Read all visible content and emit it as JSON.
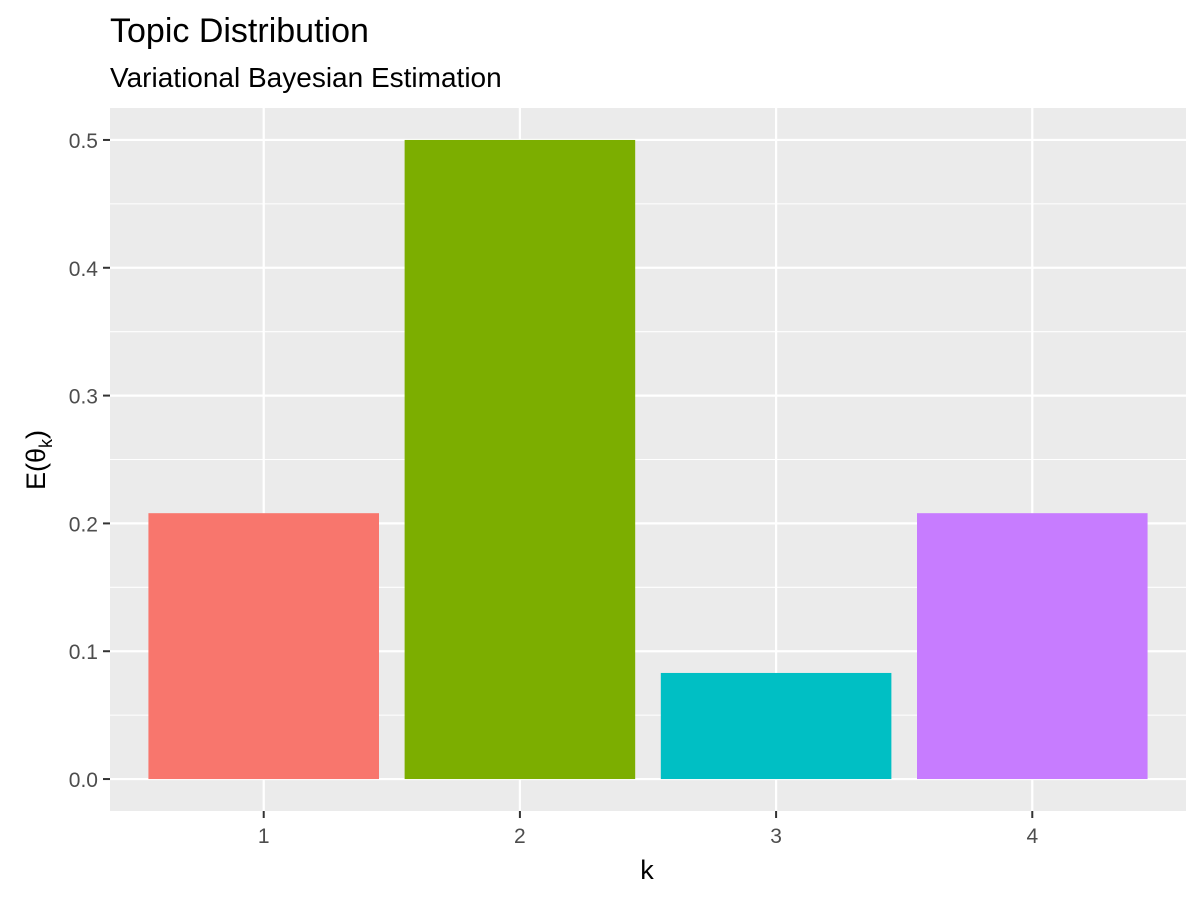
{
  "chart_data": {
    "type": "bar",
    "title": "Topic Distribution",
    "subtitle": "Variational Bayesian Estimation",
    "xlabel": "k",
    "ylabel": {
      "main": "E(θ",
      "sub": "k",
      "close": ")"
    },
    "categories": [
      "1",
      "2",
      "3",
      "4"
    ],
    "values": [
      0.208,
      0.5,
      0.083,
      0.208
    ],
    "colors": [
      "#F8766D",
      "#7CAE00",
      "#00BFC4",
      "#C77CFF"
    ],
    "ylim": [
      -0.025,
      0.525
    ],
    "y_ticks": [
      0.0,
      0.1,
      0.2,
      0.3,
      0.4,
      0.5
    ],
    "y_tick_labels": [
      "0.0",
      "0.1",
      "0.2",
      "0.3",
      "0.4",
      "0.5"
    ],
    "grid": true,
    "panel_background": "#EBEBEB",
    "legend": "none"
  }
}
